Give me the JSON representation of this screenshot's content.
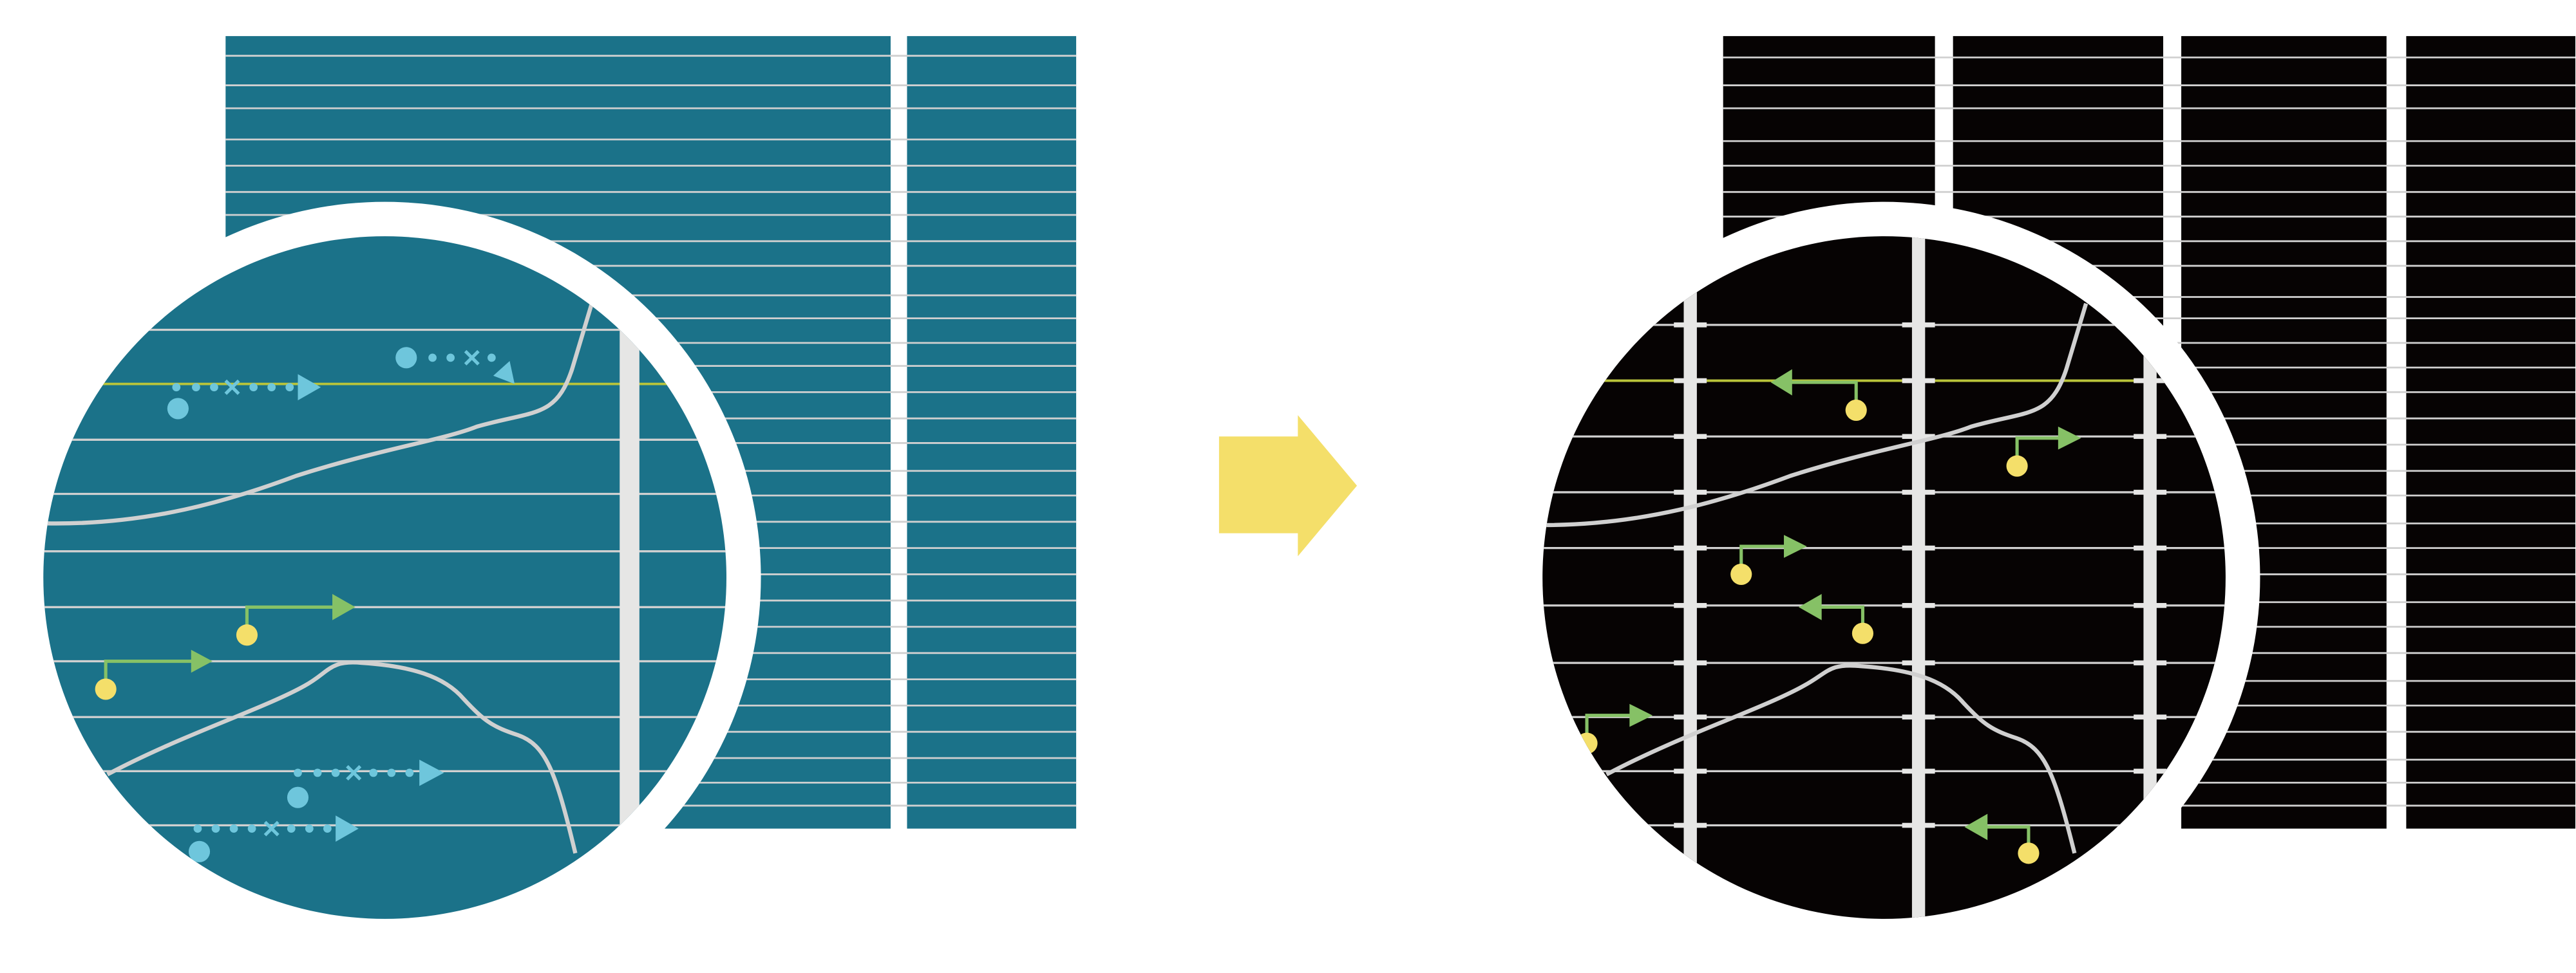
{
  "colors": {
    "teal_panel": "#1B7289",
    "black_panel": "#060303",
    "grid_line": "#D0D0D0",
    "bar": "#E6E6E5",
    "highlight_line": "#B9C43A",
    "blue_marker": "#6EC6DC",
    "green_arrow": "#86C166",
    "yellow_dot": "#F4DF6A",
    "transition_arrow": "#F4DF6A"
  },
  "icons": {
    "transition": "right-arrow-icon"
  }
}
